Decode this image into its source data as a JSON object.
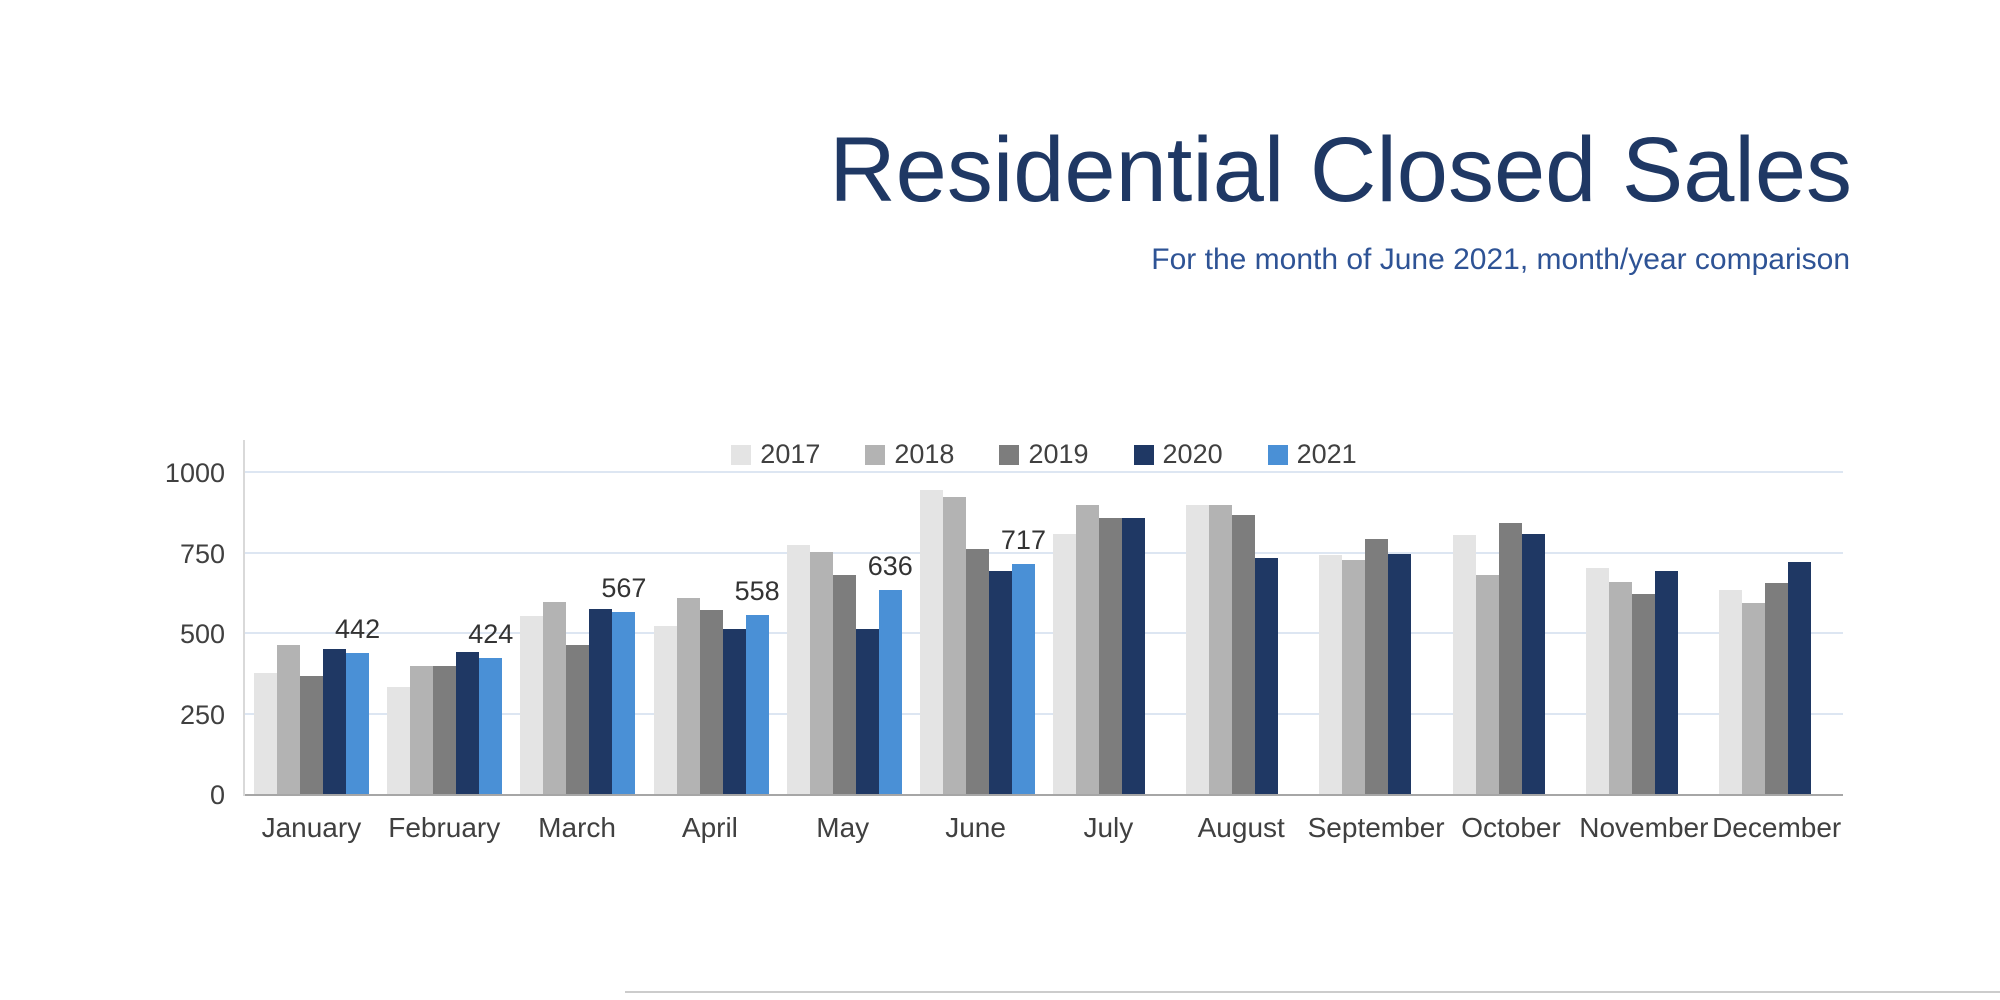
{
  "header": {
    "title": "Residential Closed Sales",
    "subtitle": "For the month of June 2021, month/year comparison"
  },
  "colors": {
    "title": "#1f3864",
    "subtitle": "#2e5395",
    "gridline": "#dde6f2",
    "axis_line": "#a6a6a6",
    "tick_text": "#404040"
  },
  "chart_data": {
    "type": "bar",
    "title": "Residential Closed Sales",
    "subtitle": "For the month of June 2021, month/year comparison",
    "categories": [
      "January",
      "February",
      "March",
      "April",
      "May",
      "June",
      "July",
      "August",
      "September",
      "October",
      "November",
      "December"
    ],
    "series": [
      {
        "name": "2017",
        "color": "#e4e4e4",
        "values": [
          378,
          336,
          556,
          526,
          777,
          946,
          810,
          900,
          746,
          809,
          706,
          638
        ]
      },
      {
        "name": "2018",
        "color": "#b3b3b3",
        "values": [
          465,
          402,
          600,
          611,
          755,
          925,
          900,
          901,
          731,
          684,
          663,
          596
        ]
      },
      {
        "name": "2019",
        "color": "#7d7d7d",
        "values": [
          371,
          401,
          465,
          574,
          683,
          764,
          861,
          869,
          794,
          846,
          624,
          658
        ]
      },
      {
        "name": "2020",
        "color": "#1f3864",
        "values": [
          452,
          443,
          577,
          517,
          516,
          695,
          860,
          735,
          747,
          810,
          695,
          723
        ]
      },
      {
        "name": "2021",
        "color": "#4a90d6",
        "values": [
          442,
          424,
          567,
          558,
          636,
          717,
          null,
          null,
          null,
          null,
          null,
          null
        ],
        "show_labels": true
      }
    ],
    "ylim": [
      0,
      1000
    ],
    "yticks": [
      0,
      250,
      500,
      750,
      1000
    ],
    "legend_position": "top",
    "grid": true
  }
}
